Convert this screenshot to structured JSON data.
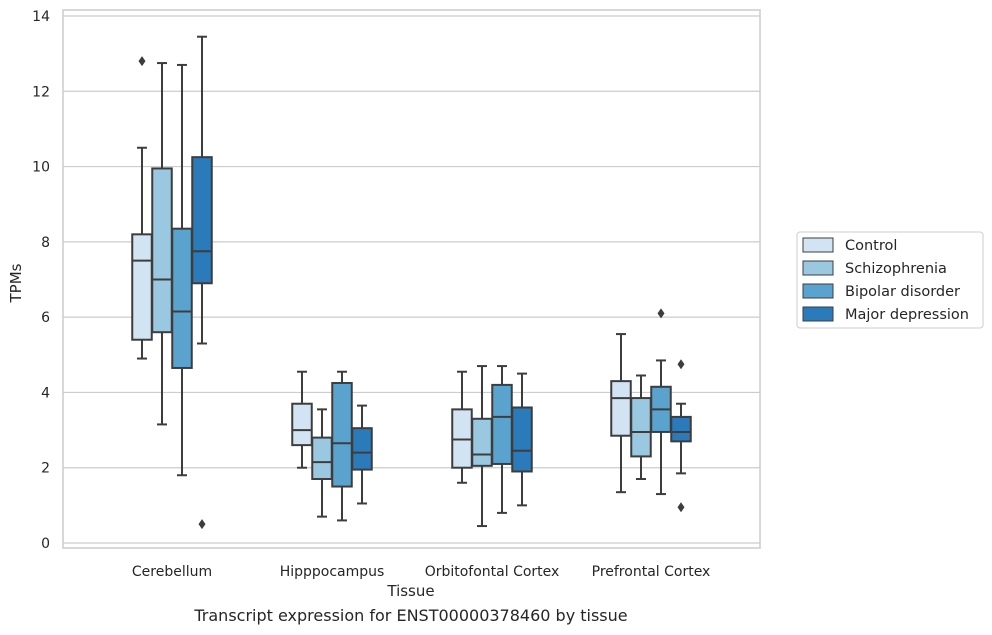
{
  "caption": "Transcript expression for ENST00000378460 by tissue",
  "chart_data": {
    "type": "box",
    "xlabel": "Tissue",
    "ylabel": "TPMs",
    "ylim": [
      0,
      14
    ],
    "yticks": [
      0,
      2,
      4,
      6,
      8,
      10,
      12,
      14
    ],
    "grid": true,
    "legend_position": "right, outside plot",
    "categories": [
      "Cerebellum",
      "Hipppocampus",
      "Orbitofontal Cortex",
      "Prefrontal Cortex"
    ],
    "series": [
      {
        "name": "Control",
        "color": "#d2e3f3",
        "boxes": [
          {
            "whisker_low": 4.9,
            "q1": 5.4,
            "median": 7.5,
            "q3": 8.2,
            "whisker_high": 10.5,
            "outliers": [
              12.8
            ]
          },
          {
            "whisker_low": 2.0,
            "q1": 2.6,
            "median": 3.0,
            "q3": 3.7,
            "whisker_high": 4.55,
            "outliers": []
          },
          {
            "whisker_low": 1.6,
            "q1": 2.0,
            "median": 2.75,
            "q3": 3.55,
            "whisker_high": 4.55,
            "outliers": []
          },
          {
            "whisker_low": 1.35,
            "q1": 2.85,
            "median": 3.85,
            "q3": 4.3,
            "whisker_high": 5.55,
            "outliers": []
          }
        ]
      },
      {
        "name": "Schizophrenia",
        "color": "#9ac8e0",
        "boxes": [
          {
            "whisker_low": 3.15,
            "q1": 5.6,
            "median": 7.0,
            "q3": 9.95,
            "whisker_high": 12.75,
            "outliers": []
          },
          {
            "whisker_low": 0.7,
            "q1": 1.7,
            "median": 2.15,
            "q3": 2.8,
            "whisker_high": 3.55,
            "outliers": []
          },
          {
            "whisker_low": 0.45,
            "q1": 2.05,
            "median": 2.35,
            "q3": 3.3,
            "whisker_high": 4.7,
            "outliers": []
          },
          {
            "whisker_low": 1.7,
            "q1": 2.3,
            "median": 2.95,
            "q3": 3.85,
            "whisker_high": 4.45,
            "outliers": []
          }
        ]
      },
      {
        "name": "Bipolar disorder",
        "color": "#5ba3cf",
        "boxes": [
          {
            "whisker_low": 1.8,
            "q1": 4.65,
            "median": 6.15,
            "q3": 8.35,
            "whisker_high": 12.7,
            "outliers": []
          },
          {
            "whisker_low": 0.6,
            "q1": 1.5,
            "median": 2.65,
            "q3": 4.25,
            "whisker_high": 4.55,
            "outliers": []
          },
          {
            "whisker_low": 0.8,
            "q1": 2.1,
            "median": 3.35,
            "q3": 4.2,
            "whisker_high": 4.7,
            "outliers": []
          },
          {
            "whisker_low": 1.3,
            "q1": 2.95,
            "median": 3.55,
            "q3": 4.15,
            "whisker_high": 4.85,
            "outliers": [
              6.1
            ]
          }
        ]
      },
      {
        "name": "Major depression",
        "color": "#2b7bba",
        "boxes": [
          {
            "whisker_low": 5.3,
            "q1": 6.9,
            "median": 7.75,
            "q3": 10.25,
            "whisker_high": 13.45,
            "outliers": [
              0.5
            ]
          },
          {
            "whisker_low": 1.05,
            "q1": 1.95,
            "median": 2.4,
            "q3": 3.05,
            "whisker_high": 3.65,
            "outliers": []
          },
          {
            "whisker_low": 1.0,
            "q1": 1.9,
            "median": 2.45,
            "q3": 3.6,
            "whisker_high": 4.5,
            "outliers": []
          },
          {
            "whisker_low": 1.85,
            "q1": 2.7,
            "median": 2.95,
            "q3": 3.35,
            "whisker_high": 3.7,
            "outliers": [
              4.75,
              0.95
            ]
          }
        ]
      }
    ]
  }
}
